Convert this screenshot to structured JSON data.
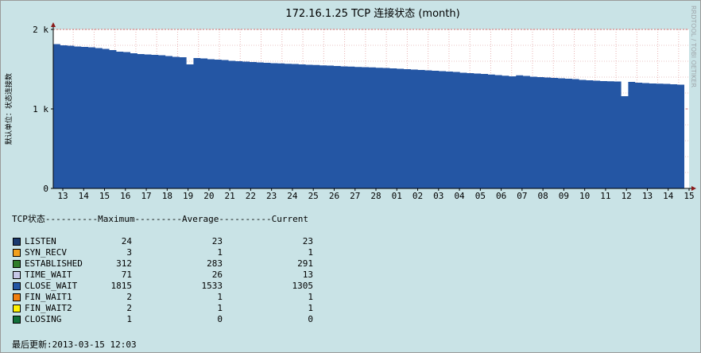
{
  "chart_data": {
    "type": "area",
    "title": "172.16.1.25 TCP 连接状态 (month)",
    "ylabel": "默认单位：状态连接数",
    "watermark": "RRDTOOL / TOBI OETIKER",
    "ylim": [
      0,
      2000
    ],
    "yticks": [
      {
        "value": 0,
        "label": "0"
      },
      {
        "value": 1000,
        "label": "1 k"
      },
      {
        "value": 2000,
        "label": "2 k"
      }
    ],
    "xticks": [
      "13",
      "14",
      "15",
      "16",
      "17",
      "18",
      "19",
      "20",
      "21",
      "22",
      "23",
      "24",
      "25",
      "26",
      "27",
      "28",
      "01",
      "02",
      "03",
      "04",
      "05",
      "06",
      "07",
      "08",
      "09",
      "10",
      "11",
      "12",
      "13",
      "14",
      "15"
    ],
    "series": [
      {
        "name": "CLOSE_WAIT",
        "color": "#2456a4",
        "values": [
          1815,
          1800,
          1795,
          1785,
          1780,
          1775,
          1765,
          1755,
          1740,
          1720,
          1715,
          1700,
          1690,
          1685,
          1680,
          1675,
          1665,
          1655,
          1650,
          1560,
          1640,
          1635,
          1625,
          1620,
          1615,
          1605,
          1600,
          1595,
          1590,
          1585,
          1580,
          1575,
          1572,
          1568,
          1565,
          1560,
          1555,
          1552,
          1548,
          1545,
          1540,
          1535,
          1532,
          1528,
          1525,
          1522,
          1518,
          1515,
          1510,
          1505,
          1500,
          1495,
          1490,
          1485,
          1480,
          1475,
          1470,
          1465,
          1455,
          1450,
          1445,
          1440,
          1432,
          1425,
          1418,
          1410,
          1422,
          1415,
          1405,
          1400,
          1395,
          1390,
          1385,
          1380,
          1375,
          1365,
          1360,
          1355,
          1350,
          1348,
          1345,
          1160,
          1340,
          1330,
          1325,
          1320,
          1318,
          1315,
          1310,
          1305
        ]
      }
    ]
  },
  "legend": {
    "header": "TCP状态----------Maximum---------Average----------Current",
    "rows": [
      {
        "name": "LISTEN",
        "color": "#1a3a6e",
        "max": "24",
        "avg": "23",
        "cur": "23"
      },
      {
        "name": "SYN_RECV",
        "color": "#f2a01d",
        "max": "3",
        "avg": "1",
        "cur": "1"
      },
      {
        "name": "ESTABLISHED",
        "color": "#2f7d2a",
        "max": "312",
        "avg": "283",
        "cur": "291"
      },
      {
        "name": "TIME_WAIT",
        "color": "#c6c8e8",
        "max": "71",
        "avg": "26",
        "cur": "13"
      },
      {
        "name": "CLOSE_WAIT",
        "color": "#2456a4",
        "max": "1815",
        "avg": "1533",
        "cur": "1305"
      },
      {
        "name": "FIN_WAIT1",
        "color": "#f07f10",
        "max": "2",
        "avg": "1",
        "cur": "1"
      },
      {
        "name": "FIN_WAIT2",
        "color": "#fff200",
        "max": "2",
        "avg": "1",
        "cur": "1"
      },
      {
        "name": "CLOSING",
        "color": "#12703a",
        "max": "1",
        "avg": "0",
        "cur": "0"
      }
    ]
  },
  "footer": {
    "label": "最后更新",
    "timestamp": ":2013-03-15 12:03"
  }
}
